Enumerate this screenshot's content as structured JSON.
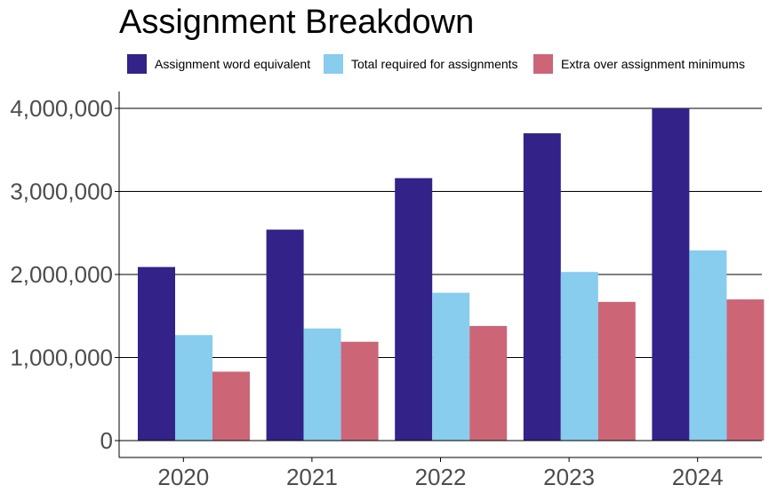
{
  "chart_data": {
    "type": "bar",
    "title": "Assignment Breakdown",
    "xlabel": "",
    "ylabel": "",
    "categories": [
      "2020",
      "2021",
      "2022",
      "2023",
      "2024"
    ],
    "series": [
      {
        "name": "Assignment word equivalent",
        "color": "#332288",
        "values": [
          2090000,
          2540000,
          3160000,
          3700000,
          4000000
        ]
      },
      {
        "name": "Total required for assignments",
        "color": "#88CCEE",
        "values": [
          1270000,
          1350000,
          1780000,
          2030000,
          2290000
        ]
      },
      {
        "name": "Extra over assignment minimums",
        "color": "#CC6677",
        "values": [
          830000,
          1190000,
          1380000,
          1670000,
          1700000
        ]
      }
    ],
    "ylim": [
      0,
      4200000
    ],
    "yticks": [
      0,
      1000000,
      2000000,
      3000000,
      4000000
    ],
    "ytick_labels": [
      "0",
      "1,000,000",
      "2,000,000",
      "3,000,000",
      "4,000,000"
    ],
    "grid": "horizontal major",
    "legend_position": "top"
  }
}
